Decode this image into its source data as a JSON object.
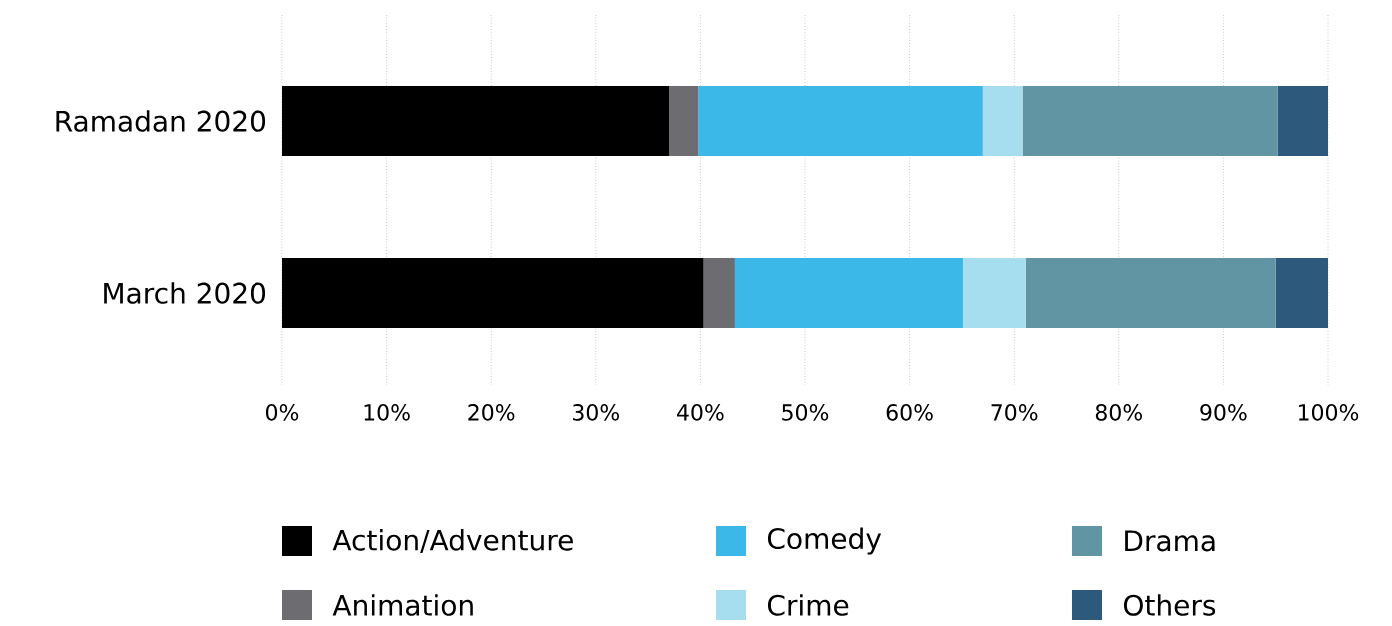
{
  "chart_data": {
    "type": "bar",
    "orientation": "horizontal",
    "stacked": true,
    "categories": [
      "Ramadan 2020",
      "March 2020"
    ],
    "series": [
      {
        "name": "Action/Adventure",
        "color": "#000000",
        "values": [
          37.0,
          40.3
        ]
      },
      {
        "name": "Animation",
        "color": "#6d6d71",
        "values": [
          2.8,
          3.0
        ]
      },
      {
        "name": "Comedy",
        "color": "#3cb8e8",
        "values": [
          27.2,
          21.8
        ]
      },
      {
        "name": "Crime",
        "color": "#a6ddef",
        "values": [
          3.8,
          6.0
        ]
      },
      {
        "name": "Drama",
        "color": "#6195a3",
        "values": [
          24.4,
          23.9
        ]
      },
      {
        "name": "Others",
        "color": "#2d5a7c",
        "values": [
          4.8,
          5.0
        ]
      }
    ],
    "xlim": [
      0,
      100
    ],
    "xticks": [
      {
        "value": 0,
        "label": "0%"
      },
      {
        "value": 10,
        "label": "10%"
      },
      {
        "value": 20,
        "label": "20%"
      },
      {
        "value": 30,
        "label": "30%"
      },
      {
        "value": 40,
        "label": "40%"
      },
      {
        "value": 50,
        "label": "50%"
      },
      {
        "value": 60,
        "label": "60%"
      },
      {
        "value": 70,
        "label": "70%"
      },
      {
        "value": 80,
        "label": "80%"
      },
      {
        "value": 90,
        "label": "90%"
      },
      {
        "value": 100,
        "label": "100%"
      }
    ],
    "grid": "x",
    "legend": "bottom"
  }
}
